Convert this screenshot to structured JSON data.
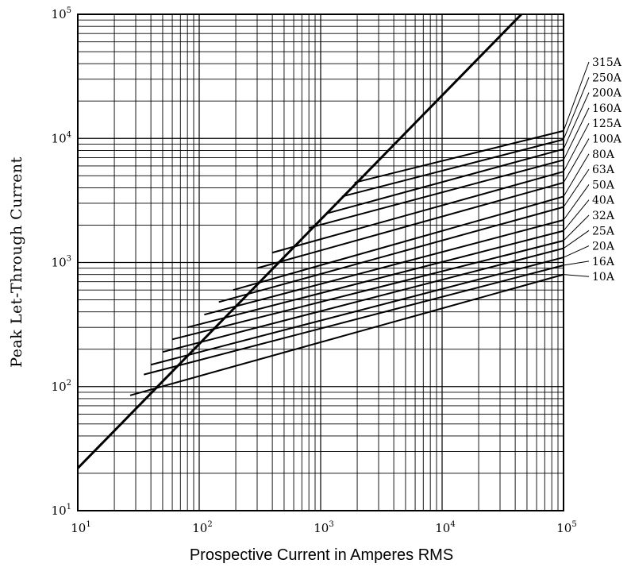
{
  "chart_data": {
    "type": "line",
    "xlabel": "Prospective Current in Amperes RMS",
    "ylabel": "Peak Let-Through Current",
    "x_scale": "log",
    "y_scale": "log",
    "xlim": [
      10,
      100000
    ],
    "ylim": [
      10,
      100000
    ],
    "grid": true,
    "x_ticks": [
      {
        "base": "10",
        "exp": "1"
      },
      {
        "base": "10",
        "exp": "2"
      },
      {
        "base": "10",
        "exp": "3"
      },
      {
        "base": "10",
        "exp": "4"
      },
      {
        "base": "10",
        "exp": "5"
      }
    ],
    "y_ticks": [
      {
        "base": "10",
        "exp": "1"
      },
      {
        "base": "10",
        "exp": "2"
      },
      {
        "base": "10",
        "exp": "3"
      },
      {
        "base": "10",
        "exp": "4"
      },
      {
        "base": "10",
        "exp": "5"
      }
    ],
    "reference_line": {
      "x": [
        10,
        45000
      ],
      "y": [
        22,
        100000
      ]
    },
    "series": [
      {
        "name": "315A",
        "x": [
          1900,
          100000
        ],
        "y": [
          4400,
          11500
        ]
      },
      {
        "name": "250A",
        "x": [
          1500,
          100000
        ],
        "y": [
          3400,
          9800
        ]
      },
      {
        "name": "200A",
        "x": [
          1150,
          100000
        ],
        "y": [
          2500,
          8200
        ]
      },
      {
        "name": "160A",
        "x": [
          800,
          100000
        ],
        "y": [
          1900,
          6700
        ]
      },
      {
        "name": "125A",
        "x": [
          400,
          100000
        ],
        "y": [
          1200,
          5400
        ]
      },
      {
        "name": "100A",
        "x": [
          300,
          100000
        ],
        "y": [
          900,
          4400
        ]
      },
      {
        "name": "80A",
        "x": [
          190,
          100000
        ],
        "y": [
          600,
          3400
        ]
      },
      {
        "name": "63A",
        "x": [
          145,
          100000
        ],
        "y": [
          480,
          2800
        ]
      },
      {
        "name": "50A",
        "x": [
          110,
          100000
        ],
        "y": [
          380,
          2200
        ]
      },
      {
        "name": "40A",
        "x": [
          80,
          100000
        ],
        "y": [
          300,
          1800
        ]
      },
      {
        "name": "32A",
        "x": [
          60,
          100000
        ],
        "y": [
          240,
          1500
        ]
      },
      {
        "name": "25A",
        "x": [
          50,
          100000
        ],
        "y": [
          190,
          1300
        ]
      },
      {
        "name": "20A",
        "x": [
          40,
          100000
        ],
        "y": [
          150,
          1100
        ]
      },
      {
        "name": "16A",
        "x": [
          35,
          100000
        ],
        "y": [
          125,
          950
        ]
      },
      {
        "name": "10A",
        "x": [
          27,
          100000
        ],
        "y": [
          85,
          800
        ]
      }
    ]
  }
}
